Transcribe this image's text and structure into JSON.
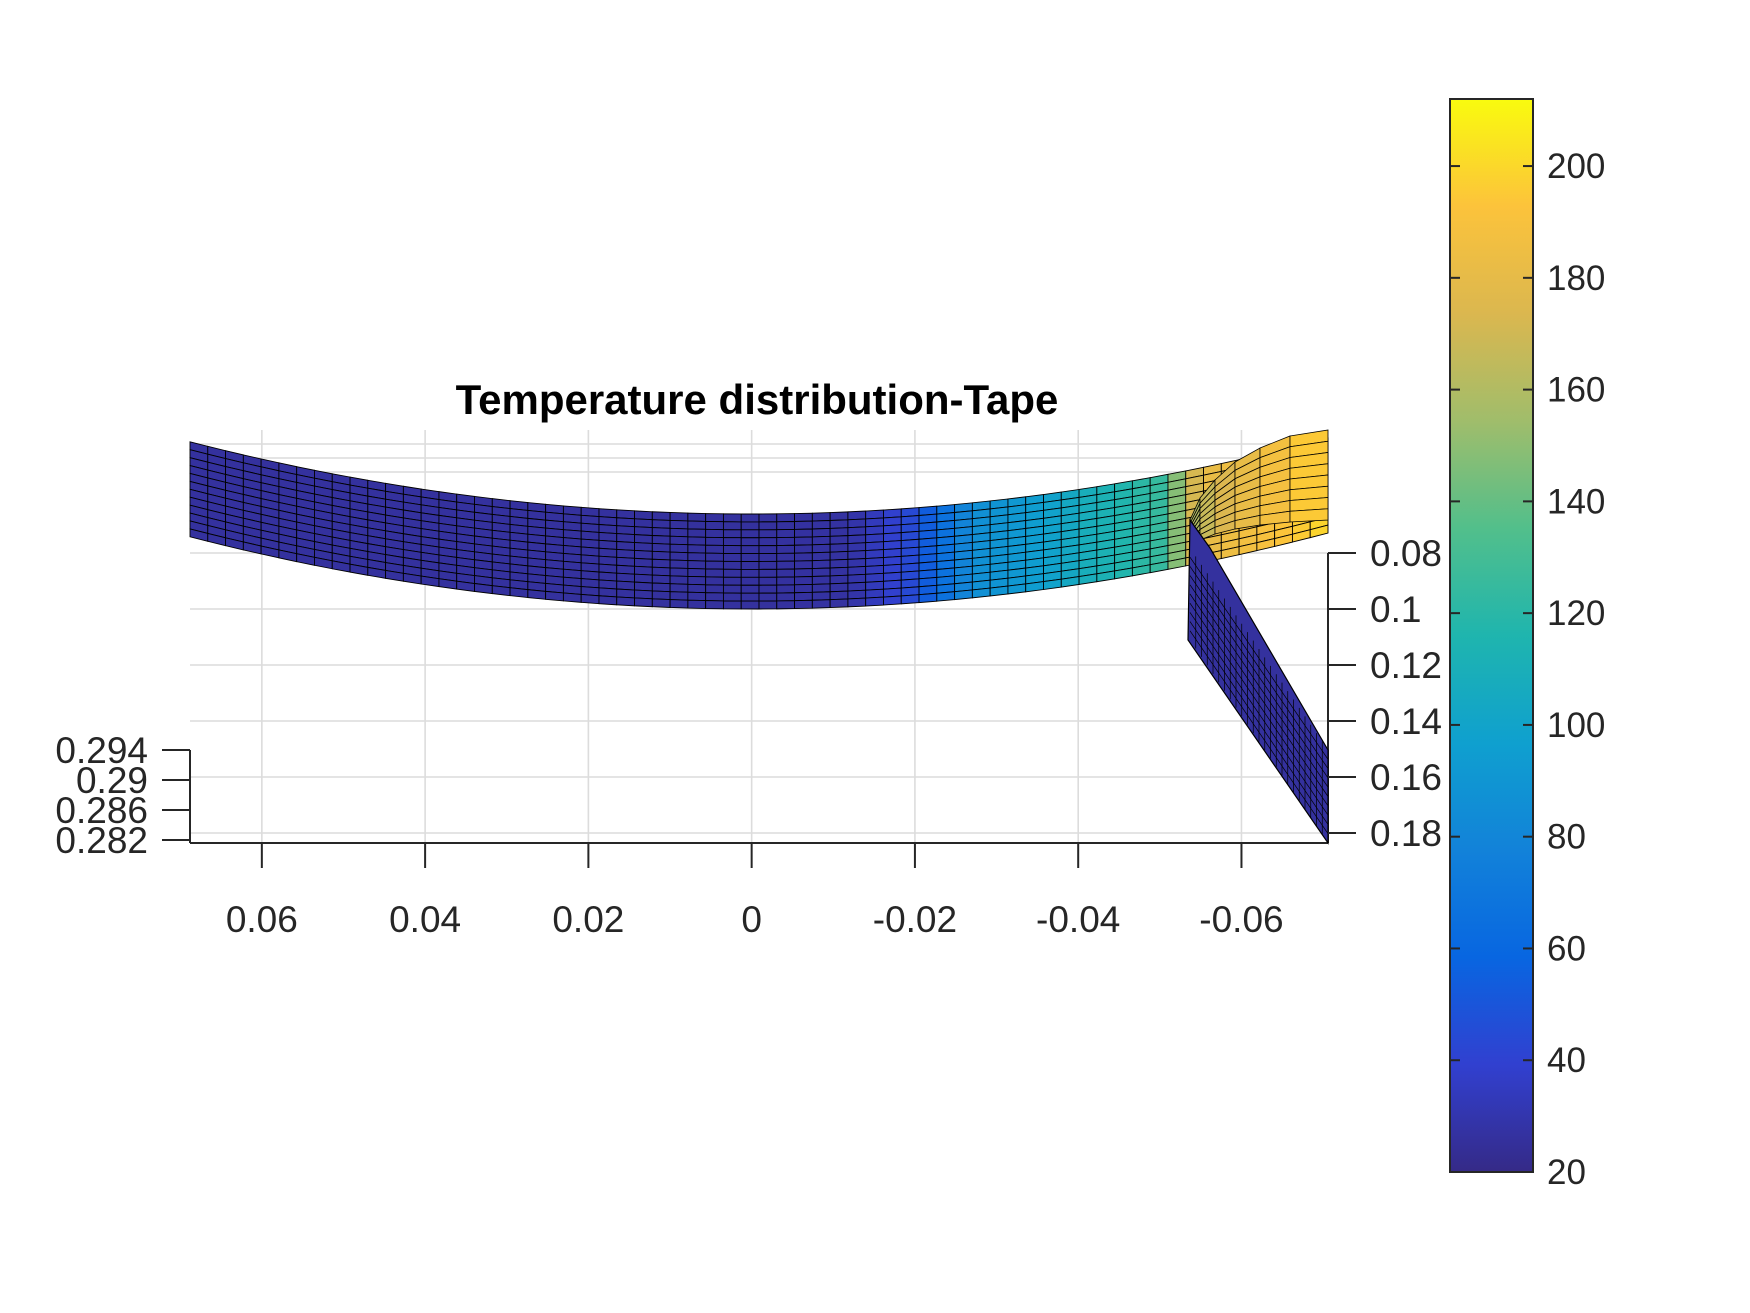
{
  "chart_data": {
    "type": "surface",
    "title": "Temperature distribution-Tape",
    "xlabel": "",
    "ylabel": "",
    "zlabel": "",
    "grid": true,
    "x_axis": {
      "ticks": [
        0.06,
        0.04,
        0.02,
        0,
        -0.02,
        -0.04,
        -0.06
      ],
      "tick_labels": [
        "0.06",
        "0.04",
        "0.02",
        "0",
        "-0.02",
        "-0.04",
        "-0.06"
      ],
      "range": [
        0.0688,
        -0.0706
      ]
    },
    "y_axis": {
      "ticks": [
        0.08,
        0.1,
        0.12,
        0.14,
        0.16,
        0.18
      ],
      "tick_labels": [
        "0.08",
        "0.1",
        "0.12",
        "0.14",
        "0.16",
        "0.18"
      ]
    },
    "z_axis": {
      "ticks": [
        0.294,
        0.29,
        0.286,
        0.282
      ],
      "tick_labels": [
        "0.294",
        "0.29",
        "0.286",
        "0.282"
      ]
    },
    "colorbar": {
      "colormap": "parula",
      "range": [
        20,
        212
      ],
      "ticks": [
        20,
        40,
        60,
        80,
        100,
        120,
        140,
        160,
        180,
        200
      ],
      "tick_labels": [
        "20",
        "40",
        "60",
        "80",
        "100",
        "120",
        "140",
        "160",
        "180",
        "200"
      ],
      "placement": "right"
    },
    "temperature_profile": {
      "x": [
        0.0688,
        0.02,
        0,
        -0.012,
        -0.02,
        -0.027,
        -0.035,
        -0.042,
        -0.05,
        -0.055,
        -0.0706
      ],
      "temperature": [
        26,
        26,
        26,
        27,
        45,
        85,
        95,
        110,
        125,
        180,
        200
      ]
    },
    "cold_strip": {
      "temperature": 26
    }
  }
}
